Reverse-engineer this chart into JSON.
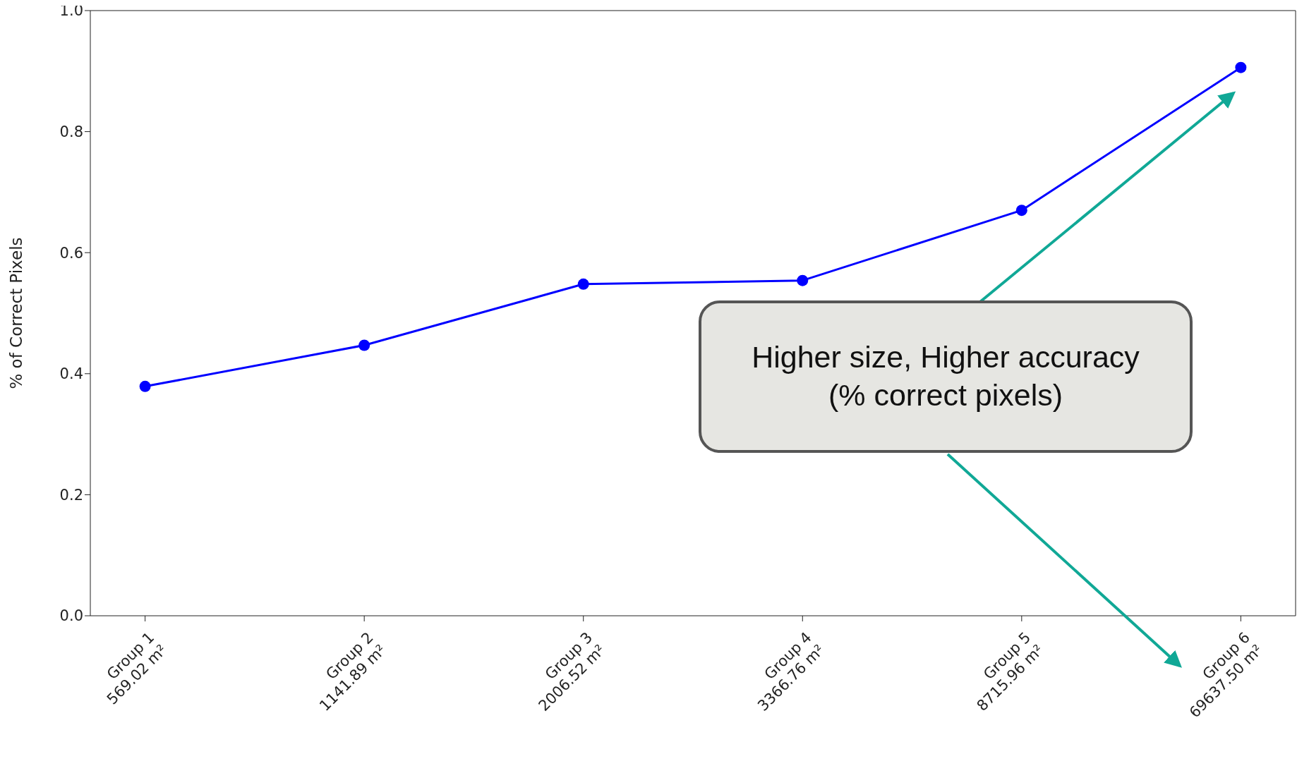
{
  "chart_data": {
    "type": "line",
    "ylabel": "% of Correct Pixels",
    "categories": [
      "Group 1\n569.02 m²",
      "Group 2\n1141.89 m²",
      "Group 3\n2006.52 m²",
      "Group 4\n3366.76 m²",
      "Group 5\n8715.96 m²",
      "Group 6\n69637.50 m²"
    ],
    "series": [
      {
        "color": "#0000ff",
        "values": [
          0.379,
          0.447,
          0.548,
          0.554,
          0.67,
          0.906
        ]
      }
    ],
    "ylim": [
      0,
      1
    ],
    "yticks": [
      {
        "value": 0,
        "label": "0.0"
      },
      {
        "value": 0.2,
        "label": "0.2"
      },
      {
        "value": 0.4,
        "label": "0.4"
      },
      {
        "value": 0.6,
        "label": "0.6"
      },
      {
        "value": 0.8,
        "label": "0.8"
      },
      {
        "value": 1,
        "label": "1.0"
      }
    ],
    "marker": "circle",
    "line_style": "solid",
    "grid": false,
    "legend": false,
    "annotations": [
      "Higher size, Higher accuracy\n(% correct pixels)"
    ]
  }
}
